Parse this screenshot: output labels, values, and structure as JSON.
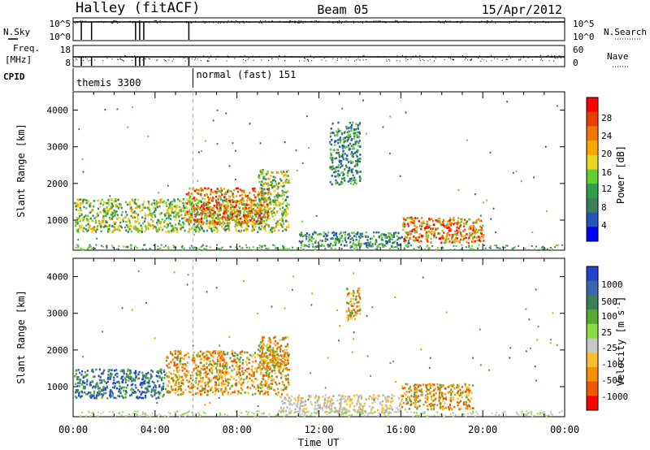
{
  "header": {
    "station": "Halley (fitACF)",
    "beam": "Beam 05",
    "date": "15/Apr/2012"
  },
  "top_panels": {
    "nsky_label": "N.Sky",
    "nsky_ticks": [
      "10^5",
      "10^0"
    ],
    "nsearch_label": "N.Search",
    "nsearch_ticks": [
      "10^5",
      "10^0"
    ],
    "freq_label": "Freq.",
    "freq_unit": "[MHz]",
    "freq_ticks": [
      "18",
      "8"
    ],
    "nave_label": "Nave",
    "nave_ticks": [
      "60",
      "0"
    ],
    "cpid_label": "CPID",
    "cpid_segments": [
      {
        "name": "themis 3300",
        "start_hour": 0.0
      },
      {
        "name": "normal (fast) 151",
        "start_hour": 5.85
      }
    ],
    "nsky_drops_hours": [
      0.4,
      0.9,
      3.05,
      3.25,
      3.45,
      5.65
    ],
    "freq_drops_hours": [
      0.4,
      0.9,
      3.05,
      3.25,
      3.45,
      5.65
    ]
  },
  "x_axis": {
    "label": "Time UT",
    "range_hours": [
      0,
      24
    ],
    "ticks": [
      "00:00",
      "04:00",
      "08:00",
      "12:00",
      "16:00",
      "20:00",
      "00:00"
    ],
    "tick_hours": [
      0,
      4,
      8,
      12,
      16,
      20,
      24
    ]
  },
  "chart_data": [
    {
      "type": "heatmap",
      "name": "power",
      "ylabel": "Slant Range [km]",
      "ylim": [
        180,
        4500
      ],
      "yticks": [
        1000,
        2000,
        3000,
        4000
      ],
      "colorbar": {
        "label": "Power [dB]",
        "ticks": [
          "28",
          "24",
          "20",
          "16",
          "12",
          "8",
          "4"
        ],
        "colors": [
          "#0000ff",
          "#2255bb",
          "#3a7f5a",
          "#2e9e4e",
          "#66cc33",
          "#e8d820",
          "#f8a800",
          "#f07800",
          "#e84000",
          "#ff0000"
        ]
      },
      "echo_regions": [
        {
          "t": [
            0.0,
            10.5
          ],
          "r": [
            700,
            1600
          ],
          "level": "moderate"
        },
        {
          "t": [
            5.5,
            9.5
          ],
          "r": [
            900,
            1900
          ],
          "level": "strong"
        },
        {
          "t": [
            9.0,
            10.5
          ],
          "r": [
            1500,
            2400
          ],
          "level": "moderate"
        },
        {
          "t": [
            12.5,
            14.0
          ],
          "r": [
            2000,
            3700
          ],
          "level": "weak"
        },
        {
          "t": [
            11.0,
            16.5
          ],
          "r": [
            300,
            700
          ],
          "level": "weak"
        },
        {
          "t": [
            16.0,
            20.0
          ],
          "r": [
            400,
            1100
          ],
          "level": "strong"
        }
      ]
    },
    {
      "type": "heatmap",
      "name": "velocity",
      "ylabel": "Slant Range [km]",
      "ylim": [
        180,
        4500
      ],
      "yticks": [
        1000,
        2000,
        3000,
        4000
      ],
      "colorbar": {
        "label": "Velocity [m s^-1]",
        "ticks": [
          "1000",
          "500",
          "100",
          "25",
          "-25",
          "-100",
          "-500",
          "-1000"
        ],
        "colors": [
          "#2244cc",
          "#3a66aa",
          "#3a7f5a",
          "#55aa33",
          "#88dd44",
          "#c8c8c8",
          "#f8c030",
          "#f89000",
          "#f05800",
          "#ff0000"
        ]
      },
      "echo_regions": [
        {
          "t": [
            0.0,
            4.5
          ],
          "r": [
            700,
            1500
          ],
          "level": "toward"
        },
        {
          "t": [
            4.5,
            10.5
          ],
          "r": [
            800,
            2000
          ],
          "level": "away"
        },
        {
          "t": [
            9.0,
            10.5
          ],
          "r": [
            1500,
            2400
          ],
          "level": "away"
        },
        {
          "t": [
            13.3,
            14.0
          ],
          "r": [
            2800,
            3700
          ],
          "level": "away"
        },
        {
          "t": [
            10.0,
            16.0
          ],
          "r": [
            300,
            800
          ],
          "level": "zero"
        },
        {
          "t": [
            16.0,
            19.5
          ],
          "r": [
            400,
            1100
          ],
          "level": "away"
        }
      ]
    }
  ]
}
